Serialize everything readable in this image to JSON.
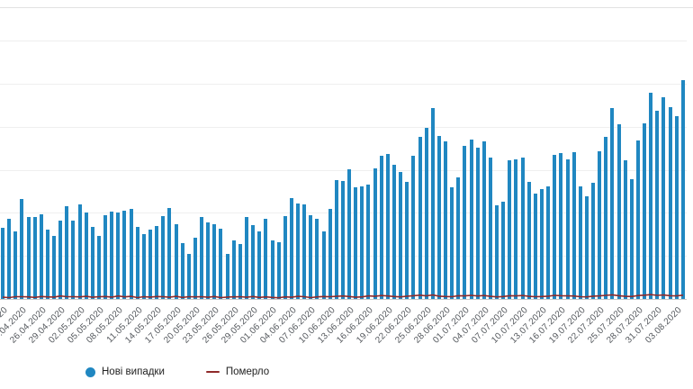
{
  "colors": {
    "bar": "#2087c1",
    "deaths": "#8f2a2a",
    "grid": "#efefef",
    "baseline": "#c9c9c9",
    "tick_label": "#55595e",
    "divider": "#e2e2e2"
  },
  "legend": {
    "new_cases_label": "Нові випадки",
    "deaths_label": "Померло"
  },
  "chart_data": {
    "type": "bar",
    "title": "",
    "xlabel": "",
    "ylabel": "",
    "ylim": [
      0,
      1500
    ],
    "grid_step": 250,
    "x_tick_every": 3,
    "legend_position": "bottom",
    "dates": [
      "20.04.2020",
      "21.04.2020",
      "22.04.2020",
      "23.04.2020",
      "24.04.2020",
      "25.04.2020",
      "26.04.2020",
      "27.04.2020",
      "28.04.2020",
      "29.04.2020",
      "30.04.2020",
      "01.05.2020",
      "02.05.2020",
      "03.05.2020",
      "04.05.2020",
      "05.05.2020",
      "06.05.2020",
      "07.05.2020",
      "08.05.2020",
      "09.05.2020",
      "10.05.2020",
      "11.05.2020",
      "12.05.2020",
      "13.05.2020",
      "14.05.2020",
      "15.05.2020",
      "16.05.2020",
      "17.05.2020",
      "18.05.2020",
      "19.05.2020",
      "20.05.2020",
      "21.05.2020",
      "22.05.2020",
      "23.05.2020",
      "24.05.2020",
      "25.05.2020",
      "26.05.2020",
      "27.05.2020",
      "28.05.2020",
      "29.05.2020",
      "30.05.2020",
      "31.05.2020",
      "01.06.2020",
      "02.06.2020",
      "03.06.2020",
      "04.06.2020",
      "05.06.2020",
      "06.06.2020",
      "07.06.2020",
      "08.06.2020",
      "09.06.2020",
      "10.06.2020",
      "11.06.2020",
      "12.06.2020",
      "13.06.2020",
      "14.06.2020",
      "15.06.2020",
      "16.06.2020",
      "17.06.2020",
      "18.06.2020",
      "19.06.2020",
      "20.06.2020",
      "21.06.2020",
      "22.06.2020",
      "23.06.2020",
      "24.06.2020",
      "25.06.2020",
      "26.06.2020",
      "27.06.2020",
      "28.06.2020",
      "29.06.2020",
      "30.06.2020",
      "01.07.2020",
      "02.07.2020",
      "03.07.2020",
      "04.07.2020",
      "05.07.2020",
      "06.07.2020",
      "07.07.2020",
      "08.07.2020",
      "09.07.2020",
      "10.07.2020",
      "11.07.2020",
      "12.07.2020",
      "13.07.2020",
      "14.07.2020",
      "15.07.2020",
      "16.07.2020",
      "17.07.2020",
      "18.07.2020",
      "19.07.2020",
      "20.07.2020",
      "21.07.2020",
      "22.07.2020",
      "23.07.2020",
      "24.07.2020",
      "25.07.2020",
      "26.07.2020",
      "27.07.2020",
      "28.07.2020",
      "29.07.2020",
      "30.07.2020",
      "31.07.2020",
      "01.08.2020",
      "02.08.2020",
      "03.08.2020",
      "04.08.2020"
    ],
    "series": [
      {
        "name": "Нові випадки",
        "type": "bar",
        "color": "#2087c1",
        "values": [
          415,
          467,
          392,
          578,
          477,
          478,
          492,
          401,
          366,
          456,
          540,
          455,
          550,
          502,
          418,
          366,
          487,
          507,
          504,
          515,
          522,
          416,
          375,
          402,
          422,
          483,
          528,
          433,
          325,
          260,
          354,
          476,
          442,
          432,
          406,
          259,
          339,
          321,
          477,
          429,
          393,
          468,
          340,
          328,
          483,
          588,
          553,
          550,
          485,
          463,
          394,
          525,
          689,
          683,
          753,
          648,
          656,
          666,
          758,
          829,
          841,
          779,
          735,
          681,
          833,
          940,
          994,
          1109,
          948,
          917,
          646,
          706,
          889,
          923,
          876,
          914,
          823,
          543,
          564,
          807,
          810,
          819,
          678,
          612,
          638,
          651,
          836,
          848,
          809,
          854,
          651,
          596,
          673,
          856,
          940,
          1106,
          1016,
          807,
          696,
          919,
          1022,
          1197,
          1090,
          1172,
          1112,
          1061,
          1271
        ]
      },
      {
        "name": "Померло",
        "type": "line",
        "color": "#8f2a2a",
        "values": [
          10,
          8,
          13,
          13,
          12,
          9,
          14,
          12,
          11,
          17,
          13,
          13,
          12,
          15,
          10,
          13,
          14,
          11,
          17,
          12,
          15,
          8,
          13,
          11,
          14,
          13,
          10,
          15,
          9,
          13,
          12,
          13,
          10,
          14,
          8,
          11,
          12,
          13,
          10,
          14,
          9,
          12,
          9,
          7,
          12,
          10,
          15,
          13,
          8,
          12,
          14,
          13,
          15,
          17,
          14,
          10,
          12,
          18,
          15,
          20,
          17,
          14,
          12,
          16,
          19,
          22,
          18,
          23,
          16,
          14,
          13,
          19,
          18,
          21,
          17,
          20,
          15,
          12,
          14,
          19,
          18,
          20,
          15,
          13,
          14,
          16,
          21,
          19,
          18,
          17,
          13,
          12,
          16,
          18,
          21,
          24,
          19,
          15,
          14,
          20,
          22,
          25,
          21,
          23,
          19,
          18,
          22
        ]
      }
    ]
  }
}
